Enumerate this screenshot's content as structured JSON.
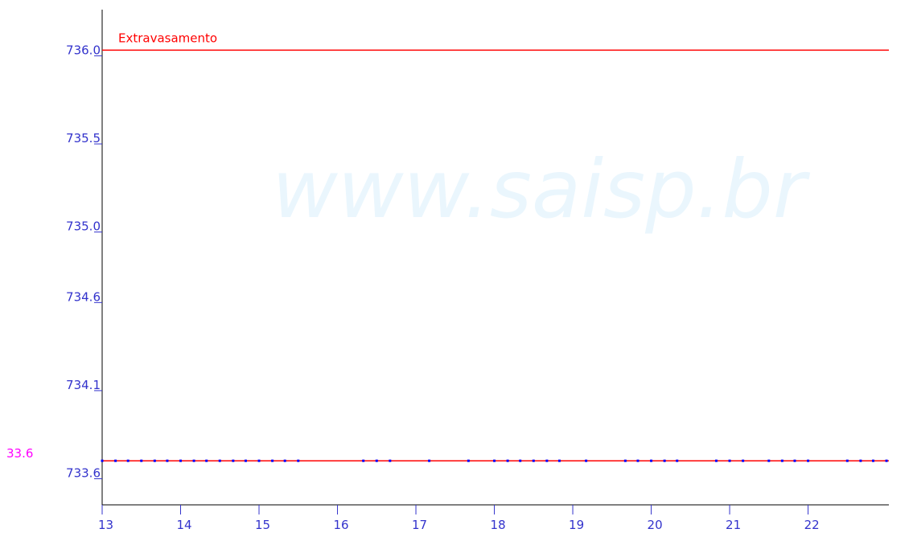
{
  "chart_data": {
    "type": "line",
    "watermark": "www.saisp.br",
    "xlim": [
      13,
      23.03
    ],
    "xticks": [
      13,
      14,
      15,
      16,
      17,
      18,
      19,
      20,
      21,
      22
    ],
    "ylim": [
      733.42,
      736.23
    ],
    "yticks": [
      {
        "value": 736.0,
        "label": "736.0"
      },
      {
        "value": 735.5,
        "label": "735.5"
      },
      {
        "value": 735.0,
        "label": "735.0"
      },
      734.6,
      734.1,
      733.6
    ],
    "reference_lines": [
      {
        "label": "Extravasamento",
        "value": 736.0,
        "color": "#ff0000"
      }
    ],
    "current_label": "33.6",
    "current_label_color": "#ff00ff",
    "series": [
      {
        "color": "#ff0000",
        "x": [
          13,
          23.03
        ],
        "values": [
          733.67,
          733.67
        ]
      },
      {
        "color": "#0000ff",
        "marker": "dot",
        "x": [
          13,
          13.17,
          13.33,
          13.5,
          13.67,
          13.83,
          14,
          14.17,
          14.33,
          14.5,
          14.67,
          14.83,
          15,
          15.17,
          15.33,
          15.5,
          16.33,
          16.5,
          16.67,
          17.17,
          17.67,
          18,
          18.17,
          18.33,
          18.5,
          18.67,
          18.83,
          19.17,
          19.67,
          19.83,
          20,
          20.17,
          20.33,
          20.83,
          21,
          21.17,
          21.5,
          21.67,
          21.83,
          22,
          22.5,
          22.67,
          22.83,
          23
        ],
        "values": [
          733.67,
          733.67,
          733.67,
          733.67,
          733.67,
          733.67,
          733.67,
          733.67,
          733.67,
          733.67,
          733.67,
          733.67,
          733.67,
          733.67,
          733.67,
          733.67,
          733.67,
          733.67,
          733.67,
          733.67,
          733.67,
          733.67,
          733.67,
          733.67,
          733.67,
          733.67,
          733.67,
          733.67,
          733.67,
          733.67,
          733.67,
          733.67,
          733.67,
          733.67,
          733.67,
          733.67,
          733.67,
          733.67,
          733.67,
          733.67,
          733.67,
          733.67,
          733.67,
          733.67
        ]
      }
    ]
  }
}
